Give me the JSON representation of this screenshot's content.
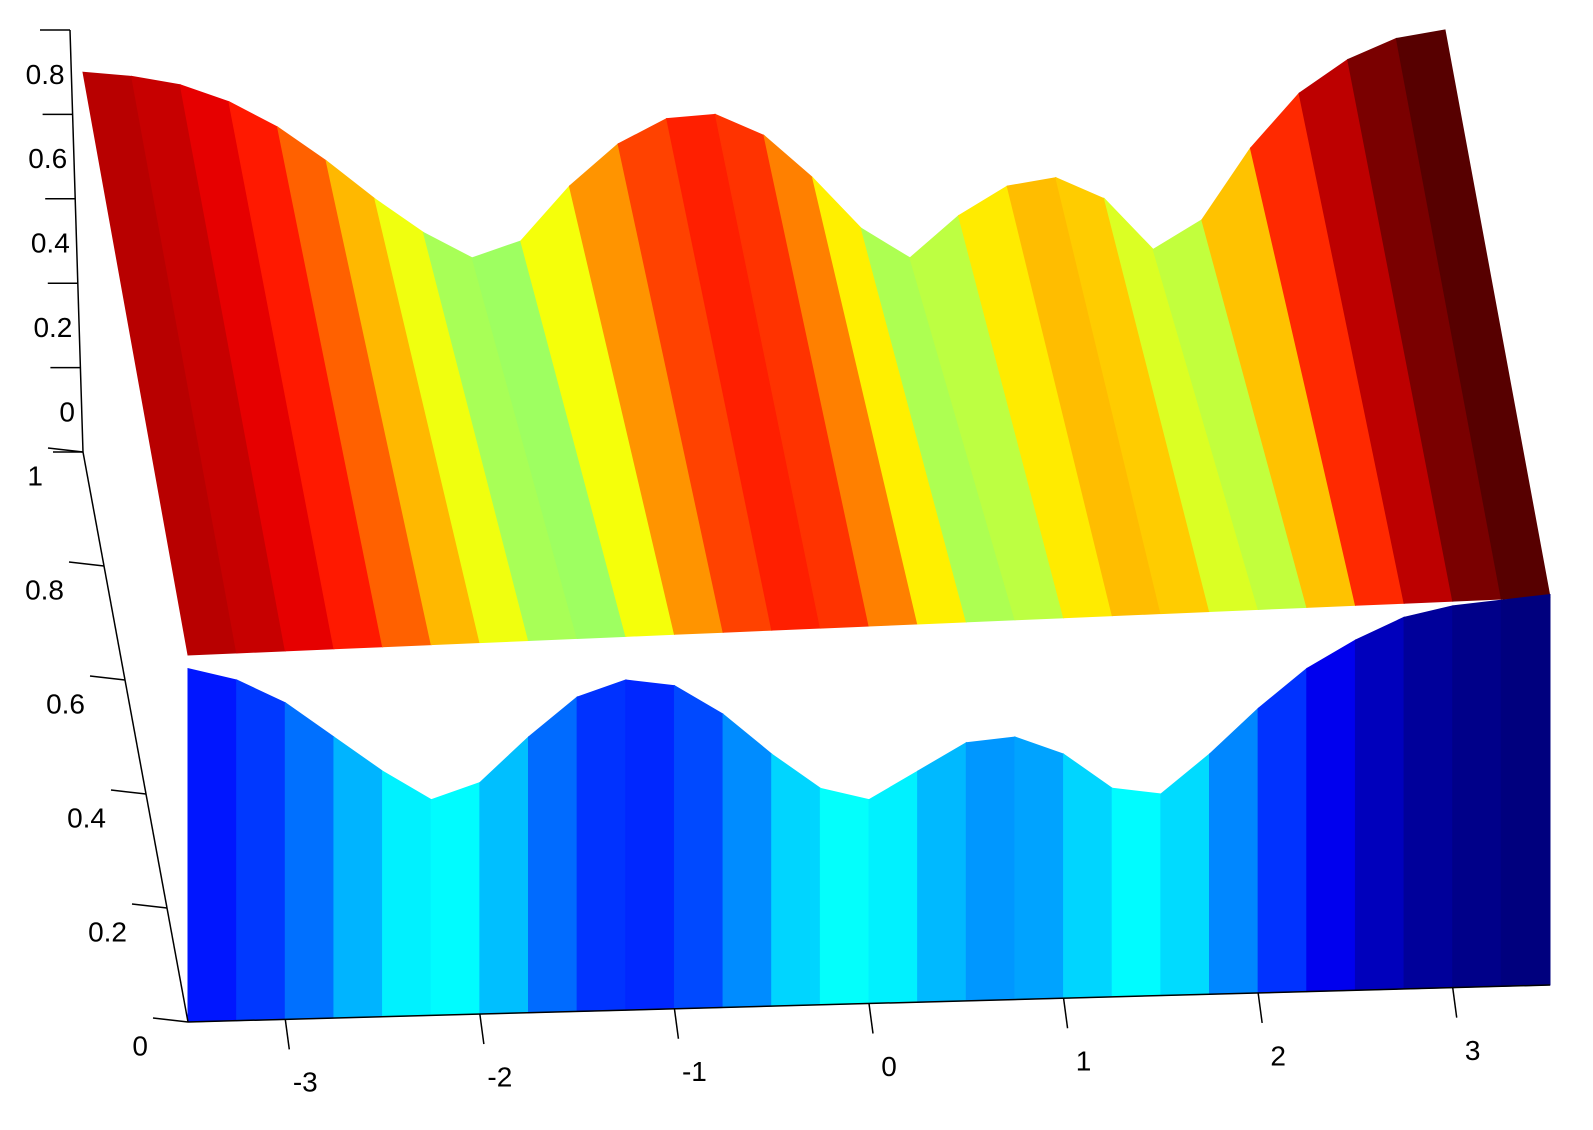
{
  "chart_data": {
    "type": "surface",
    "colormap": "jet",
    "x": [
      -3.5,
      -3.25,
      -3,
      -2.75,
      -2.5,
      -2.25,
      -2,
      -1.75,
      -1.5,
      -1.25,
      -1,
      -0.75,
      -0.5,
      -0.25,
      0,
      0.25,
      0.5,
      0.75,
      1,
      1.25,
      1.5,
      1.75,
      2,
      2.25,
      2.5,
      2.75,
      3,
      3.25,
      3.5
    ],
    "series": [
      {
        "values": [
          0.9,
          0.89,
          0.87,
          0.83,
          0.77,
          0.69,
          0.6,
          0.52,
          0.46,
          0.5,
          0.63,
          0.73,
          0.79,
          0.8,
          0.75,
          0.65,
          0.53,
          0.46,
          0.56,
          0.63,
          0.65,
          0.6,
          0.48,
          0.55,
          0.72,
          0.85,
          0.93,
          0.98,
          1.0
        ]
      },
      {
        "values": [
          0.62,
          0.6,
          0.56,
          0.5,
          0.44,
          0.39,
          0.42,
          0.5,
          0.57,
          0.6,
          0.59,
          0.54,
          0.47,
          0.41,
          0.39,
          0.44,
          0.49,
          0.5,
          0.47,
          0.41,
          0.4,
          0.47,
          0.55,
          0.62,
          0.67,
          0.71,
          0.73,
          0.74,
          0.75
        ]
      }
    ],
    "xlim": [
      -3.5,
      3.5
    ],
    "xticks": [
      -3,
      -2,
      -1,
      0,
      1,
      2,
      3
    ],
    "zlim": [
      0,
      1
    ],
    "zticks": [
      0,
      0.2,
      0.4,
      0.6,
      0.8,
      1
    ]
  }
}
